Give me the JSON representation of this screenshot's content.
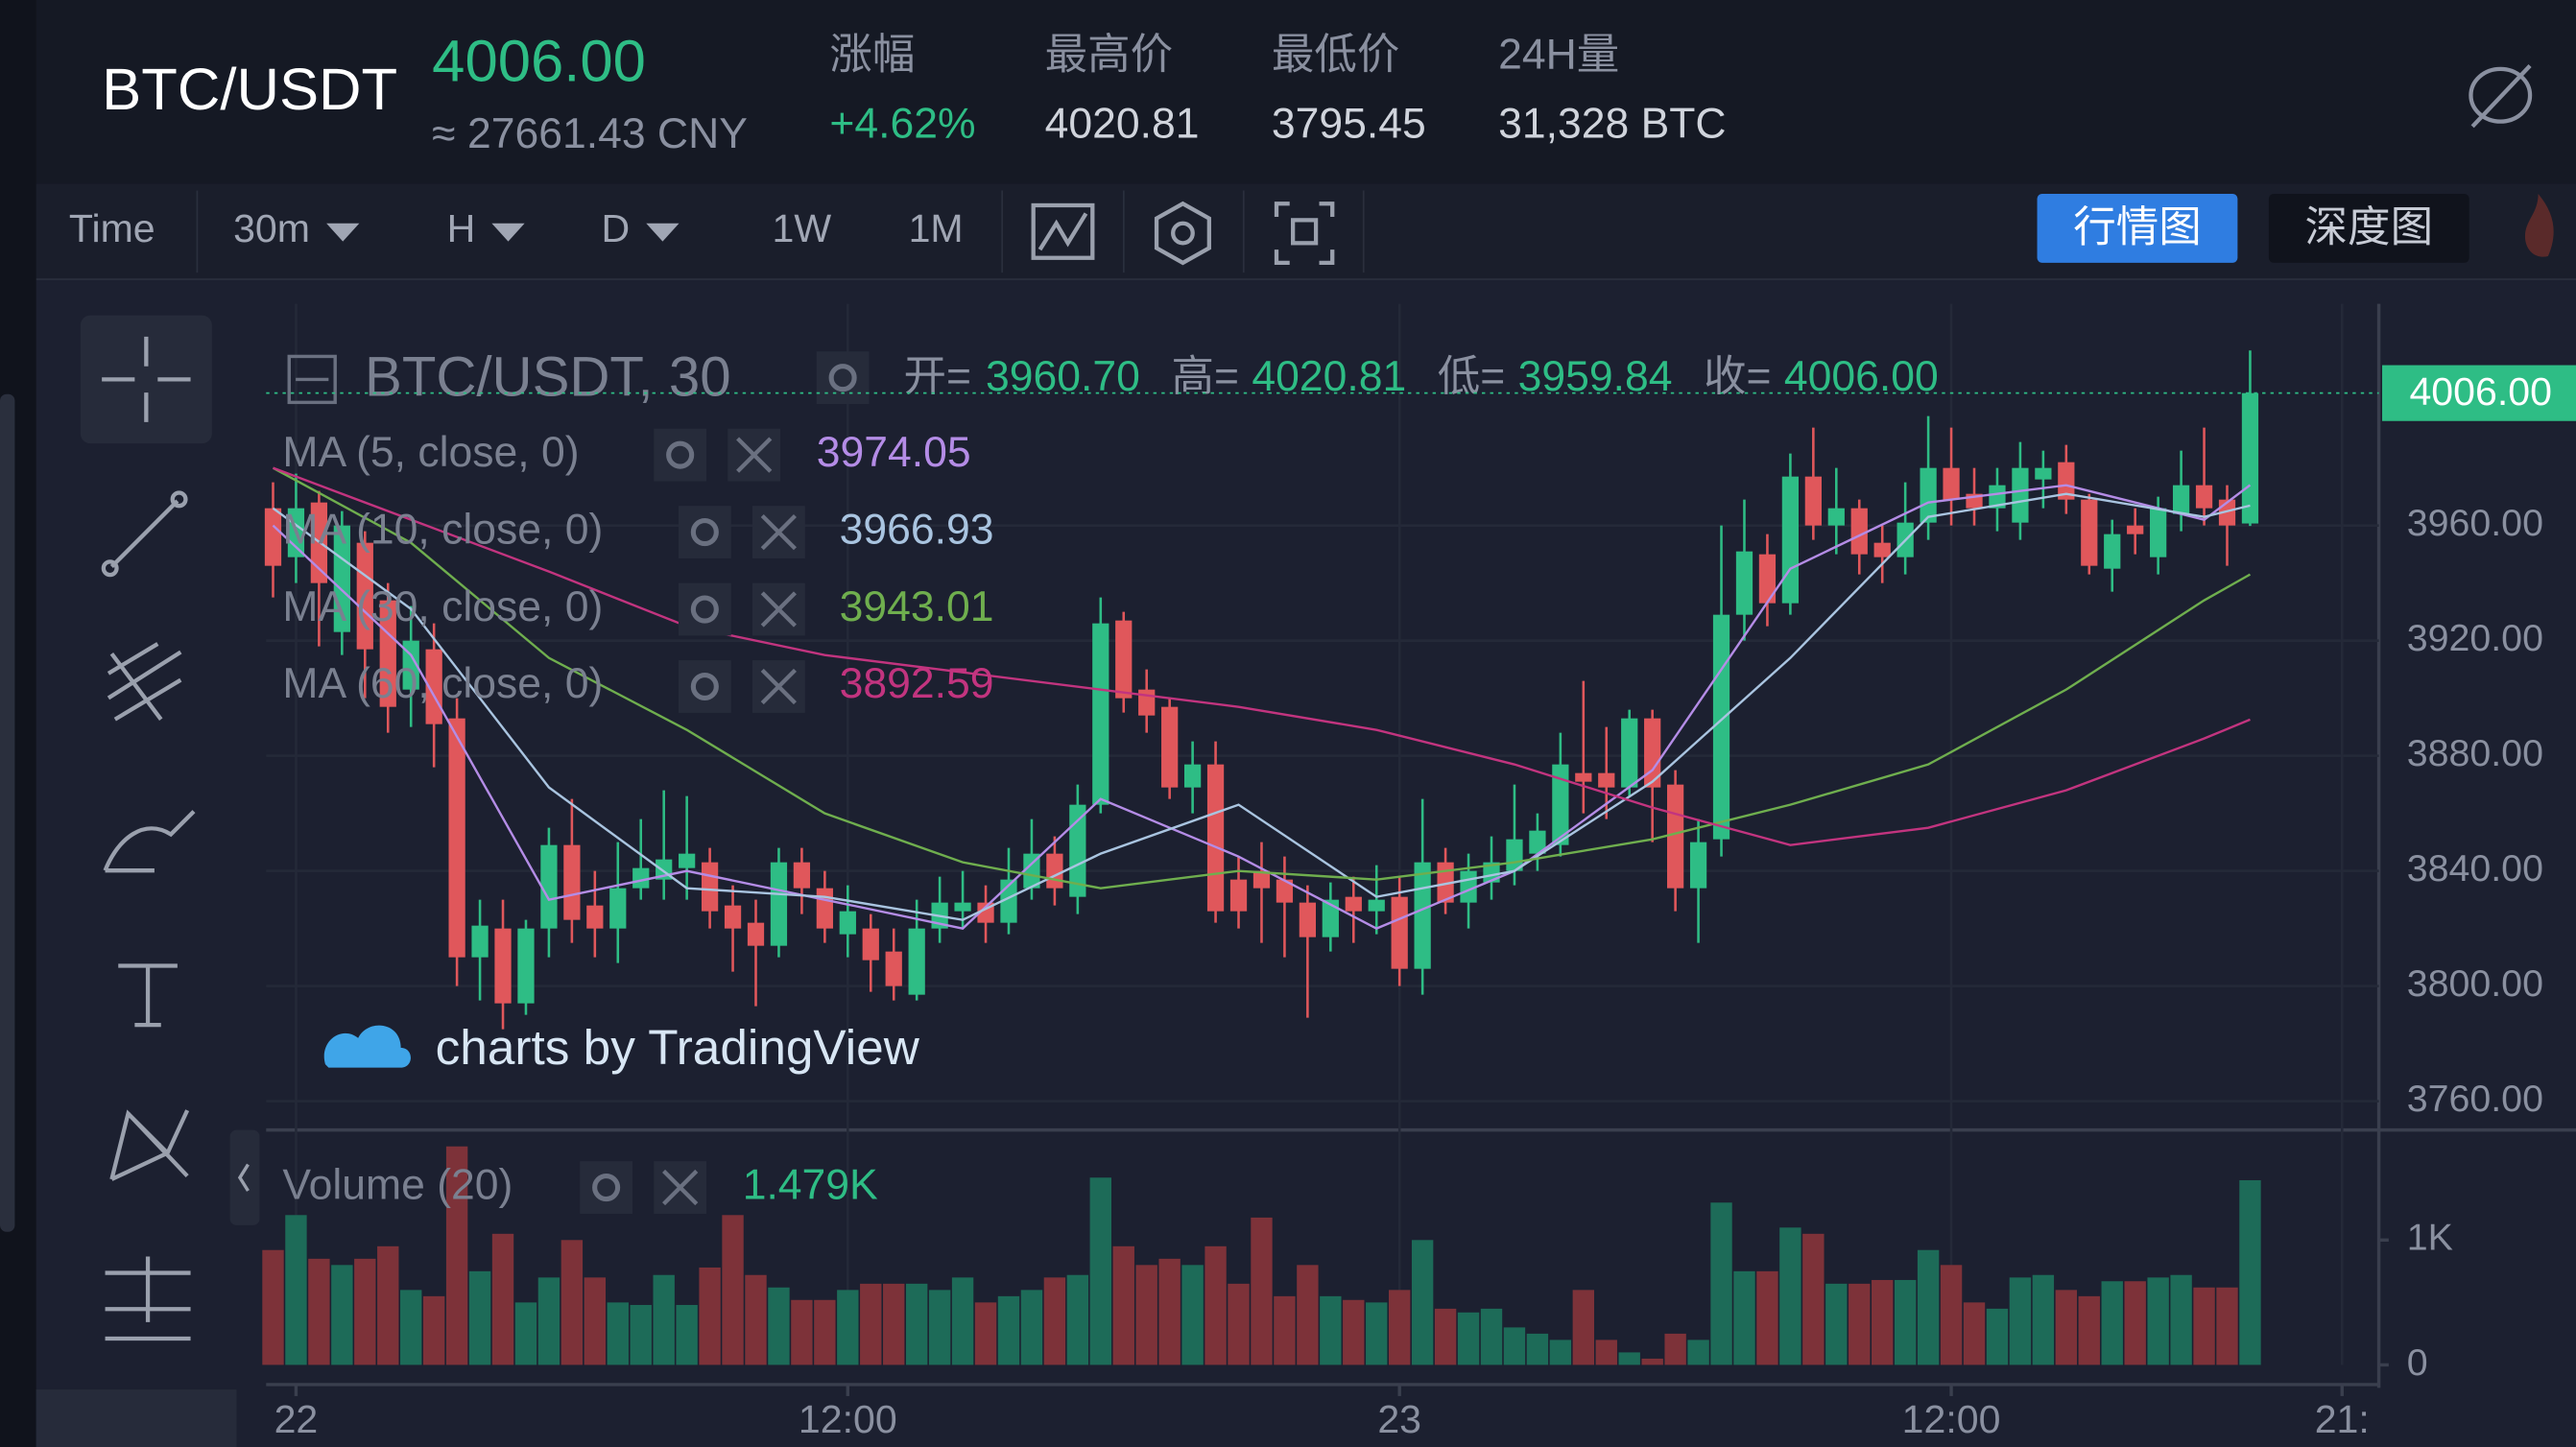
{
  "header": {
    "symbol": "BTC/USDT",
    "price": "4006.00",
    "cny": "≈ 27661.43 CNY",
    "stats": [
      {
        "label": "涨幅",
        "value": "+4.62%"
      },
      {
        "label": "最高价",
        "value": "4020.81"
      },
      {
        "label": "最低价",
        "value": "3795.45"
      },
      {
        "label": "24H量",
        "value": "31,328 BTC"
      }
    ]
  },
  "toolbar": {
    "intervals": [
      "Time",
      "30m",
      "H",
      "D",
      "1W",
      "1M"
    ],
    "tabs": [
      "行情图",
      "深度图"
    ]
  },
  "chart_data": {
    "type": "candlestick",
    "title": "BTC/USDT, 30",
    "ohlc_prefixes": [
      "开=",
      "高=",
      "低=",
      "收="
    ],
    "ohlc_labels": [
      "3960.70",
      "4020.81",
      "3959.84",
      "4006.00"
    ],
    "colors": {
      "up": "#2ebd85",
      "down": "#e0575b",
      "volume_up": "#1d6b58",
      "volume_down": "#7d3239"
    },
    "candles": [
      [
        3966,
        3975,
        3935,
        3946
      ],
      [
        3949,
        3978,
        3940,
        3966
      ],
      [
        3968,
        3972,
        3918,
        3940
      ],
      [
        3923,
        3965,
        3915,
        3960
      ],
      [
        3954,
        3958,
        3900,
        3917
      ],
      [
        3934,
        3940,
        3888,
        3897
      ],
      [
        3903,
        3932,
        3890,
        3920
      ],
      [
        3917,
        3926,
        3876,
        3891
      ],
      [
        3893,
        3900,
        3800,
        3810
      ],
      [
        3810,
        3830,
        3795,
        3821
      ],
      [
        3820,
        3830,
        3785,
        3794
      ],
      [
        3794,
        3823,
        3790,
        3820
      ],
      [
        3820,
        3855,
        3810,
        3849
      ],
      [
        3849,
        3865,
        3815,
        3823
      ],
      [
        3828,
        3840,
        3810,
        3820
      ],
      [
        3820,
        3850,
        3808,
        3834
      ],
      [
        3834,
        3858,
        3830,
        3841
      ],
      [
        3837,
        3868,
        3830,
        3844
      ],
      [
        3841,
        3866,
        3830,
        3846
      ],
      [
        3843,
        3848,
        3820,
        3826
      ],
      [
        3828,
        3835,
        3805,
        3820
      ],
      [
        3822,
        3830,
        3793,
        3814
      ],
      [
        3814,
        3848,
        3810,
        3843
      ],
      [
        3843,
        3848,
        3825,
        3834
      ],
      [
        3834,
        3840,
        3815,
        3820
      ],
      [
        3818,
        3835,
        3810,
        3826
      ],
      [
        3820,
        3825,
        3798,
        3809
      ],
      [
        3812,
        3820,
        3795,
        3800
      ],
      [
        3797,
        3830,
        3795,
        3820
      ],
      [
        3820,
        3838,
        3815,
        3829
      ],
      [
        3826,
        3840,
        3820,
        3829
      ],
      [
        3829,
        3835,
        3815,
        3822
      ],
      [
        3822,
        3848,
        3818,
        3837
      ],
      [
        3834,
        3858,
        3830,
        3846
      ],
      [
        3846,
        3852,
        3828,
        3834
      ],
      [
        3831,
        3870,
        3825,
        3863
      ],
      [
        3863,
        3935,
        3860,
        3926
      ],
      [
        3927,
        3930,
        3895,
        3900
      ],
      [
        3903,
        3910,
        3888,
        3894
      ],
      [
        3897,
        3900,
        3865,
        3869
      ],
      [
        3869,
        3885,
        3860,
        3877
      ],
      [
        3877,
        3885,
        3822,
        3826
      ],
      [
        3837,
        3845,
        3820,
        3826
      ],
      [
        3840,
        3850,
        3815,
        3834
      ],
      [
        3837,
        3845,
        3810,
        3829
      ],
      [
        3829,
        3835,
        3789,
        3817
      ],
      [
        3817,
        3836,
        3812,
        3830
      ],
      [
        3831,
        3838,
        3815,
        3826
      ],
      [
        3826,
        3842,
        3818,
        3830
      ],
      [
        3831,
        3838,
        3800,
        3806
      ],
      [
        3806,
        3865,
        3797,
        3843
      ],
      [
        3843,
        3848,
        3825,
        3829
      ],
      [
        3829,
        3846,
        3820,
        3840
      ],
      [
        3836,
        3852,
        3830,
        3843
      ],
      [
        3840,
        3870,
        3835,
        3851
      ],
      [
        3846,
        3860,
        3840,
        3854
      ],
      [
        3849,
        3888,
        3845,
        3877
      ],
      [
        3874,
        3906,
        3860,
        3871
      ],
      [
        3874,
        3890,
        3858,
        3869
      ],
      [
        3869,
        3896,
        3866,
        3893
      ],
      [
        3893,
        3896,
        3850,
        3869
      ],
      [
        3870,
        3875,
        3826,
        3834
      ],
      [
        3834,
        3858,
        3815,
        3850
      ],
      [
        3851,
        3960,
        3845,
        3929
      ],
      [
        3929,
        3969,
        3920,
        3951
      ],
      [
        3950,
        3957,
        3925,
        3933
      ],
      [
        3933,
        3985,
        3929,
        3977
      ],
      [
        3977,
        3994,
        3955,
        3960
      ],
      [
        3960,
        3980,
        3950,
        3966
      ],
      [
        3966,
        3969,
        3943,
        3950
      ],
      [
        3954,
        3960,
        3940,
        3949
      ],
      [
        3949,
        3975,
        3943,
        3961
      ],
      [
        3961,
        3998,
        3955,
        3980
      ],
      [
        3980,
        3994,
        3960,
        3969
      ],
      [
        3971,
        3980,
        3960,
        3966
      ],
      [
        3966,
        3980,
        3958,
        3974
      ],
      [
        3961,
        3989,
        3955,
        3980
      ],
      [
        3976,
        3986,
        3966,
        3980
      ],
      [
        3982,
        3988,
        3964,
        3969
      ],
      [
        3969,
        3971,
        3943,
        3946
      ],
      [
        3945,
        3962,
        3937,
        3957
      ],
      [
        3960,
        3966,
        3950,
        3957
      ],
      [
        3949,
        3970,
        3943,
        3966
      ],
      [
        3964,
        3986,
        3958,
        3974
      ],
      [
        3974,
        3994,
        3960,
        3966
      ],
      [
        3969,
        3974,
        3946,
        3960
      ],
      [
        3960.7,
        4020.81,
        3959.84,
        4006
      ]
    ],
    "ylim": [
      3750,
      4037
    ],
    "yticks": [
      {
        "value": 3760,
        "label": "3760.00"
      },
      {
        "value": 3800,
        "label": "3800.00"
      },
      {
        "value": 3840,
        "label": "3840.00"
      },
      {
        "value": 3880,
        "label": "3880.00"
      },
      {
        "value": 3920,
        "label": "3920.00"
      },
      {
        "value": 3960,
        "label": "3960.00"
      }
    ],
    "xlim": [
      -0.3,
      91.6
    ],
    "xticks": [
      {
        "value": 1,
        "label": "22"
      },
      {
        "value": 25,
        "label": "12:00"
      },
      {
        "value": 49,
        "label": "23"
      },
      {
        "value": 73,
        "label": "12:00"
      },
      {
        "value": 90,
        "label": "21:"
      }
    ],
    "ma_index": [
      0,
      6,
      12,
      18,
      24,
      30,
      36,
      42,
      48,
      54,
      60,
      66,
      72,
      78,
      84,
      86
    ],
    "ma": [
      {
        "name": "MA (5, close, 0)",
        "color": "#b48ce6",
        "values": [
          3960,
          3915,
          3830,
          3840,
          3830,
          3820,
          3865,
          3845,
          3820,
          3840,
          3875,
          3945,
          3968,
          3974,
          3962,
          3974.05
        ]
      },
      {
        "name": "MA (10, close, 0)",
        "color": "#a9c4e0",
        "values": [
          3966,
          3931,
          3869,
          3834,
          3831,
          3823,
          3846,
          3863,
          3831,
          3840,
          3871,
          3914,
          3963,
          3971,
          3963,
          3966.93
        ]
      },
      {
        "name": "MA (30, close, 0)",
        "color": "#6fae4e",
        "values": [
          3980,
          3954,
          3914,
          3889,
          3860,
          3843,
          3834,
          3840,
          3837,
          3843,
          3851,
          3863,
          3877,
          3903,
          3934,
          3943.01
        ]
      },
      {
        "name": "MA (60, close, 0)",
        "color": "#c2347f",
        "values": [
          3980,
          3962,
          3944,
          3925,
          3915,
          3909,
          3903,
          3897,
          3889,
          3877,
          3862,
          3849,
          3855,
          3868,
          3886,
          3892.59
        ]
      }
    ],
    "volume": {
      "name": "Volume (20)",
      "label": "1.479K",
      "ylim": [
        0,
        1.855
      ],
      "yticks": [
        0,
        {
          "value": 1,
          "label": "1K"
        }
      ],
      "values": [
        0.92,
        1.2,
        0.85,
        0.8,
        0.85,
        0.95,
        0.6,
        0.55,
        1.75,
        0.75,
        1.05,
        0.5,
        0.7,
        1.0,
        0.7,
        0.5,
        0.48,
        0.72,
        0.48,
        0.78,
        1.2,
        0.72,
        0.62,
        0.52,
        0.52,
        0.6,
        0.65,
        0.65,
        0.65,
        0.6,
        0.7,
        0.5,
        0.55,
        0.6,
        0.7,
        0.72,
        1.5,
        0.95,
        0.8,
        0.85,
        0.8,
        0.95,
        0.65,
        1.18,
        0.55,
        0.8,
        0.55,
        0.52,
        0.5,
        0.6,
        1.0,
        0.45,
        0.42,
        0.45,
        0.3,
        0.25,
        0.2,
        0.6,
        0.2,
        0.1,
        0.05,
        0.25,
        0.2,
        1.3,
        0.75,
        0.75,
        1.1,
        1.05,
        0.65,
        0.65,
        0.68,
        0.68,
        0.92,
        0.8,
        0.5,
        0.45,
        0.7,
        0.72,
        0.6,
        0.55,
        0.67,
        0.67,
        0.7,
        0.72,
        0.62,
        0.62,
        1.479
      ]
    },
    "watermark": "charts by TradingView"
  }
}
